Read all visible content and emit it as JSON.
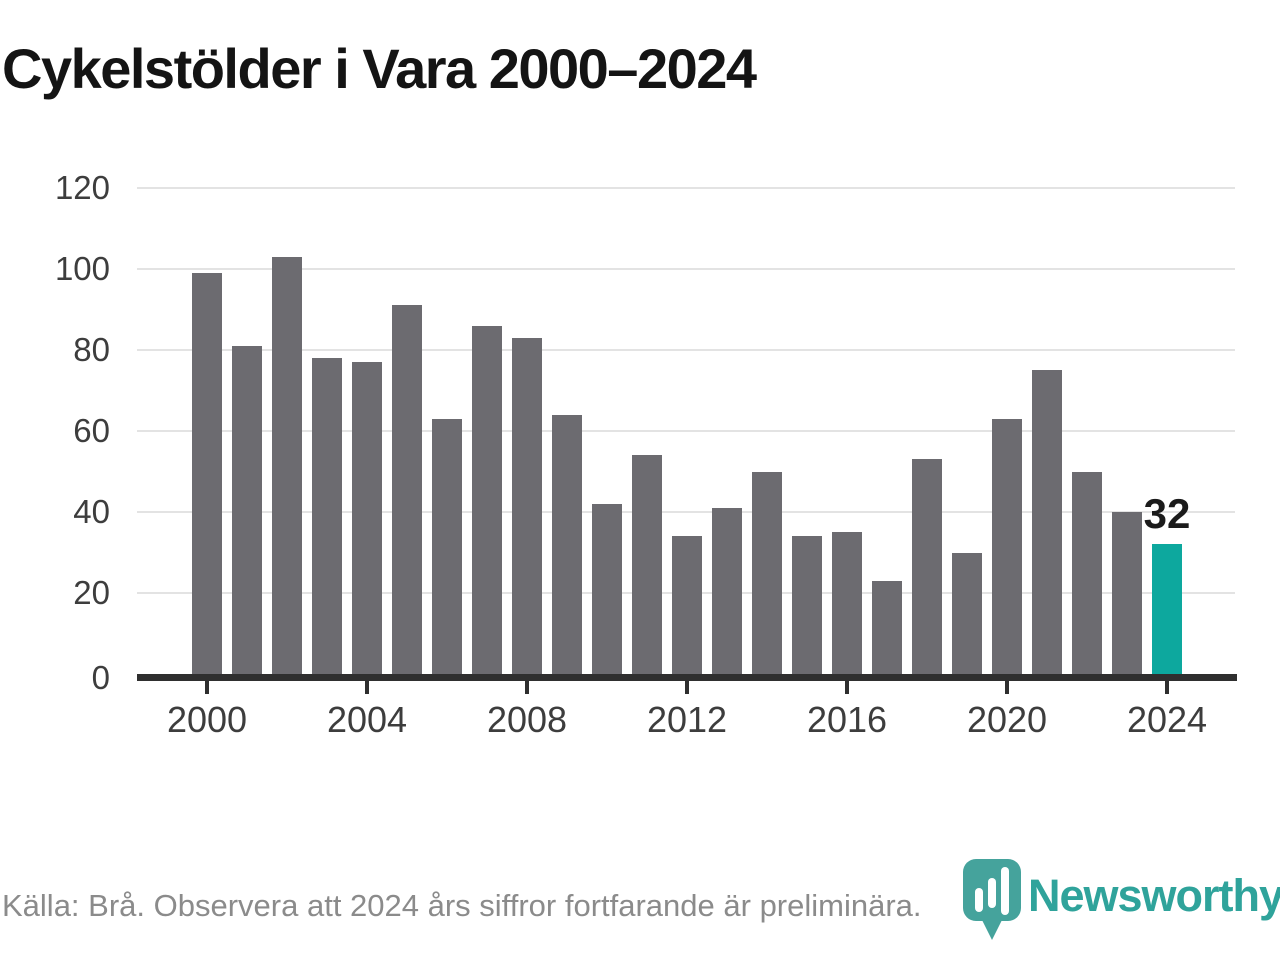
{
  "title": "Cykelstölder i Vara 2000–2024",
  "chart_data": {
    "type": "bar",
    "x": [
      2000,
      2001,
      2002,
      2003,
      2004,
      2005,
      2006,
      2007,
      2008,
      2009,
      2010,
      2011,
      2012,
      2013,
      2014,
      2015,
      2016,
      2017,
      2018,
      2019,
      2020,
      2021,
      2022,
      2023,
      2024
    ],
    "values": [
      99,
      81,
      103,
      78,
      77,
      91,
      63,
      86,
      83,
      64,
      42,
      54,
      34,
      41,
      50,
      34,
      35,
      23,
      53,
      30,
      63,
      75,
      50,
      40,
      32
    ],
    "title": "Cykelstölder i Vara 2000–2024",
    "xlabel": "",
    "ylabel": "",
    "ylim": [
      0,
      120
    ],
    "y_ticks": [
      0,
      20,
      40,
      60,
      80,
      100,
      120
    ],
    "x_ticks": [
      2000,
      2004,
      2008,
      2012,
      2016,
      2020,
      2024
    ],
    "grid": true,
    "legend": "none",
    "bar_color": "#6c6b70",
    "highlight_year": 2024,
    "highlight_color": "#0da89e",
    "highlight_label": "32"
  },
  "footer": {
    "source_note": "Källa: Brå. Observera att 2024 års siffror fortfarande är preliminära."
  },
  "logo": {
    "wordmark": "Newsworthy",
    "color": "#2fa39b",
    "mark_color": "#45a39c"
  }
}
